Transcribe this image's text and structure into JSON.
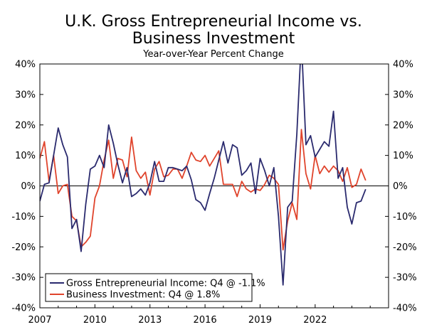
{
  "chart_data": {
    "type": "line",
    "title_line1": "U.K. Gross Entrepreneurial Income vs.",
    "title_line2": "Business Investment",
    "subtitle": "Year-over-Year Percent Change",
    "ylim": [
      -40,
      40
    ],
    "xlim": [
      2007.0,
      2026.0
    ],
    "y_ticks": [
      -40,
      -30,
      -20,
      -10,
      0,
      10,
      20,
      30,
      40
    ],
    "y_tick_labels": [
      "-40%",
      "-30%",
      "-20%",
      "-10%",
      "0%",
      "10%",
      "20%",
      "30%",
      "40%"
    ],
    "x_ticks": [
      2007,
      2010,
      2013,
      2016,
      2019,
      2022
    ],
    "x_tick_labels": [
      "2007",
      "2010",
      "2013",
      "2016",
      "2019",
      "2022"
    ],
    "grid": false,
    "legend_position": "bottom-left",
    "series": [
      {
        "name": "Gross Entrepreneurial Income: Q4 @ -1.1%",
        "color": "#2a2a6e",
        "x": [
          2007.0,
          2007.25,
          2007.5,
          2007.75,
          2008.0,
          2008.25,
          2008.5,
          2008.75,
          2009.0,
          2009.25,
          2009.5,
          2009.75,
          2010.0,
          2010.25,
          2010.5,
          2010.75,
          2011.0,
          2011.25,
          2011.5,
          2011.75,
          2012.0,
          2012.25,
          2012.5,
          2012.75,
          2013.0,
          2013.25,
          2013.5,
          2013.75,
          2014.0,
          2014.25,
          2014.5,
          2014.75,
          2015.0,
          2015.25,
          2015.5,
          2015.75,
          2016.0,
          2016.25,
          2016.5,
          2016.75,
          2017.0,
          2017.25,
          2017.5,
          2017.75,
          2018.0,
          2018.25,
          2018.5,
          2018.75,
          2019.0,
          2019.25,
          2019.5,
          2019.75,
          2020.0,
          2020.25,
          2020.5,
          2020.75,
          2021.0,
          2021.25,
          2021.5,
          2021.75,
          2022.0,
          2022.25,
          2022.5,
          2022.75,
          2023.0,
          2023.25,
          2023.5,
          2023.75,
          2024.0,
          2024.25,
          2024.5,
          2024.75
        ],
        "values": [
          -5,
          0.5,
          1,
          10,
          19,
          13.5,
          9.5,
          -14,
          -11,
          -21.5,
          -6,
          5.5,
          6.5,
          10,
          6,
          20,
          14,
          7,
          1,
          6,
          -3.5,
          -2.5,
          -1,
          -3,
          1,
          8,
          1.5,
          1.5,
          6,
          6,
          5.5,
          5,
          6.5,
          2,
          -4.5,
          -5.5,
          -8,
          -2.5,
          2.5,
          8.5,
          14.5,
          7.5,
          13.5,
          12.5,
          3.5,
          5,
          7.5,
          -2.5,
          9,
          5,
          0,
          6,
          -10,
          -32.5,
          -7,
          -5,
          17,
          48,
          13.5,
          16.5,
          9.5,
          12,
          14.5,
          13,
          24.5,
          2.5,
          6,
          -7,
          -12.5,
          -5.5,
          -5,
          -1.1
        ]
      },
      {
        "name": "Business Investment: Q4 @ 1.8%",
        "color": "#e0442c",
        "x": [
          2007.0,
          2007.25,
          2007.5,
          2007.75,
          2008.0,
          2008.25,
          2008.5,
          2008.75,
          2009.0,
          2009.25,
          2009.5,
          2009.75,
          2010.0,
          2010.25,
          2010.5,
          2010.75,
          2011.0,
          2011.25,
          2011.5,
          2011.75,
          2012.0,
          2012.25,
          2012.5,
          2012.75,
          2013.0,
          2013.25,
          2013.5,
          2013.75,
          2014.0,
          2014.25,
          2014.5,
          2014.75,
          2015.0,
          2015.25,
          2015.5,
          2015.75,
          2016.0,
          2016.25,
          2016.5,
          2016.75,
          2017.0,
          2017.25,
          2017.5,
          2017.75,
          2018.0,
          2018.25,
          2018.5,
          2018.75,
          2019.0,
          2019.25,
          2019.5,
          2019.75,
          2020.0,
          2020.25,
          2020.5,
          2020.75,
          2021.0,
          2021.25,
          2021.5,
          2021.75,
          2022.0,
          2022.25,
          2022.5,
          2022.75,
          2023.0,
          2023.25,
          2023.5,
          2023.75,
          2024.0,
          2024.25,
          2024.5,
          2024.75
        ],
        "values": [
          9,
          14.5,
          1.5,
          10,
          -2.5,
          0,
          0.5,
          -10,
          -11.5,
          -20,
          -18.5,
          -16.5,
          -4,
          0,
          8.5,
          15,
          2.5,
          9,
          8.5,
          3,
          16,
          5,
          2.5,
          4.5,
          -3,
          5.5,
          8,
          3,
          3.5,
          5.5,
          5.5,
          2.5,
          6.5,
          11,
          8.5,
          8,
          10,
          6.5,
          9,
          11.5,
          0.5,
          0.5,
          0.5,
          -3.5,
          1.5,
          -1,
          -2,
          -1,
          -1.5,
          0.5,
          3.5,
          2.5,
          0.5,
          -21,
          -11.5,
          -5.5,
          -11,
          18.5,
          4,
          -1,
          10,
          4,
          6.5,
          4.5,
          6.5,
          5,
          1.5,
          6,
          -0.5,
          0.5,
          5.5,
          1.8
        ]
      }
    ]
  }
}
